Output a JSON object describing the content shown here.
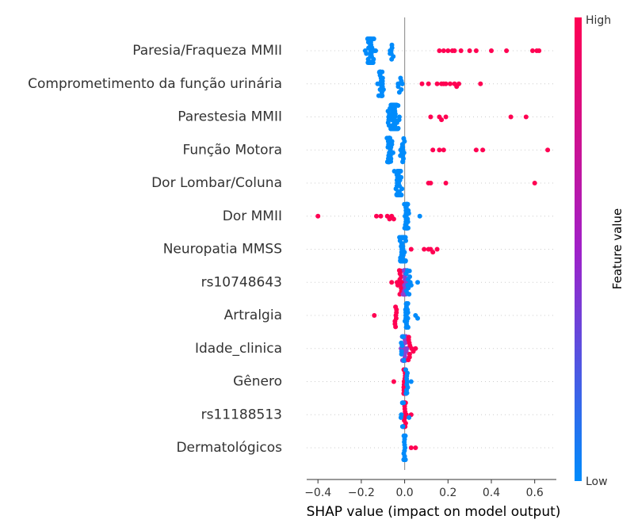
{
  "chart_data": {
    "type": "scatter",
    "subtype": "shap-beeswarm-summary",
    "title": "",
    "xlabel": "SHAP value (impact on model output)",
    "xlim": [
      -0.45,
      0.72
    ],
    "xticks": [
      -0.4,
      -0.2,
      0.0,
      0.2,
      0.4,
      0.6
    ],
    "xtick_labels": [
      "−0.4",
      "−0.2",
      "0.0",
      "0.2",
      "0.4",
      "0.6"
    ],
    "colorbar": {
      "label": "Feature value",
      "high_label": "High",
      "low_label": "Low",
      "low_color": "#008bfb",
      "mid_color": "#a020c8",
      "high_color": "#ff0052"
    },
    "colors": {
      "low": "#008bfb",
      "mid": "#8e3fd0",
      "high": "#ff0052",
      "axis": "#333333",
      "zero_line": "#999999",
      "row_grid": "#cccccc"
    },
    "features": [
      {
        "name": "Paresia/Fraqueza MMII",
        "clusters": [
          {
            "center": -0.16,
            "spread": 0.035,
            "n": 45,
            "level": "low"
          },
          {
            "center": -0.06,
            "spread": 0.02,
            "n": 8,
            "level": "low"
          }
        ],
        "points": [
          {
            "x": 0.16,
            "level": "high"
          },
          {
            "x": 0.18,
            "level": "high"
          },
          {
            "x": 0.2,
            "level": "high"
          },
          {
            "x": 0.22,
            "level": "high"
          },
          {
            "x": 0.23,
            "level": "high"
          },
          {
            "x": 0.26,
            "level": "high"
          },
          {
            "x": 0.3,
            "level": "high"
          },
          {
            "x": 0.33,
            "level": "high"
          },
          {
            "x": 0.4,
            "level": "high"
          },
          {
            "x": 0.47,
            "level": "high"
          },
          {
            "x": 0.59,
            "level": "high"
          },
          {
            "x": 0.61,
            "level": "high"
          },
          {
            "x": 0.62,
            "level": "high"
          }
        ]
      },
      {
        "name": "Comprometimento da função urinária",
        "clusters": [
          {
            "center": -0.11,
            "spread": 0.025,
            "n": 28,
            "level": "low"
          },
          {
            "center": -0.02,
            "spread": 0.015,
            "n": 8,
            "level": "low"
          }
        ],
        "points": [
          {
            "x": 0.08,
            "level": "high"
          },
          {
            "x": 0.11,
            "level": "high"
          },
          {
            "x": 0.15,
            "level": "high"
          },
          {
            "x": 0.17,
            "level": "high"
          },
          {
            "x": 0.18,
            "level": "high"
          },
          {
            "x": 0.19,
            "level": "high"
          },
          {
            "x": 0.21,
            "level": "high"
          },
          {
            "x": 0.23,
            "level": "high"
          },
          {
            "x": 0.24,
            "level": "high"
          },
          {
            "x": 0.25,
            "level": "high"
          },
          {
            "x": 0.35,
            "level": "high"
          }
        ]
      },
      {
        "name": "Parestesia MMII",
        "clusters": [
          {
            "center": -0.05,
            "spread": 0.035,
            "n": 55,
            "level": "low"
          }
        ],
        "points": [
          {
            "x": 0.12,
            "level": "high"
          },
          {
            "x": 0.16,
            "level": "high"
          },
          {
            "x": 0.17,
            "level": "high"
          },
          {
            "x": 0.19,
            "level": "high"
          },
          {
            "x": 0.49,
            "level": "high"
          },
          {
            "x": 0.56,
            "level": "high"
          }
        ]
      },
      {
        "name": "Função Motora",
        "clusters": [
          {
            "center": -0.07,
            "spread": 0.018,
            "n": 30,
            "level": "low"
          },
          {
            "center": -0.01,
            "spread": 0.015,
            "n": 14,
            "level": "low"
          }
        ],
        "points": [
          {
            "x": 0.13,
            "level": "high"
          },
          {
            "x": 0.16,
            "level": "high"
          },
          {
            "x": 0.18,
            "level": "high"
          },
          {
            "x": 0.33,
            "level": "high"
          },
          {
            "x": 0.36,
            "level": "high"
          },
          {
            "x": 0.66,
            "level": "high"
          }
        ]
      },
      {
        "name": "Dor Lombar/Coluna",
        "clusters": [
          {
            "center": -0.03,
            "spread": 0.022,
            "n": 40,
            "level": "low"
          }
        ],
        "points": [
          {
            "x": 0.11,
            "level": "high"
          },
          {
            "x": 0.12,
            "level": "high"
          },
          {
            "x": 0.19,
            "level": "high"
          },
          {
            "x": 0.6,
            "level": "high"
          }
        ]
      },
      {
        "name": "Dor MMII",
        "clusters": [
          {
            "center": 0.01,
            "spread": 0.012,
            "n": 40,
            "level": "low"
          }
        ],
        "points": [
          {
            "x": 0.07,
            "level": "low"
          },
          {
            "x": -0.4,
            "level": "high"
          },
          {
            "x": -0.13,
            "level": "high"
          },
          {
            "x": -0.11,
            "level": "high"
          },
          {
            "x": -0.08,
            "level": "high"
          },
          {
            "x": -0.07,
            "level": "high"
          },
          {
            "x": -0.06,
            "level": "high"
          },
          {
            "x": -0.05,
            "level": "high"
          }
        ]
      },
      {
        "name": "Neuropatia MMSS",
        "clusters": [
          {
            "center": -0.01,
            "spread": 0.02,
            "n": 45,
            "level": "low"
          }
        ],
        "points": [
          {
            "x": 0.03,
            "level": "high"
          },
          {
            "x": 0.09,
            "level": "high"
          },
          {
            "x": 0.11,
            "level": "high"
          },
          {
            "x": 0.12,
            "level": "high"
          },
          {
            "x": 0.13,
            "level": "high"
          },
          {
            "x": 0.15,
            "level": "high"
          }
        ]
      },
      {
        "name": "rs10748643",
        "clusters": [
          {
            "center": -0.02,
            "spread": 0.02,
            "n": 14,
            "level": "high"
          },
          {
            "center": 0.0,
            "spread": 0.015,
            "n": 18,
            "level": "mid"
          },
          {
            "center": 0.02,
            "spread": 0.02,
            "n": 12,
            "level": "low"
          }
        ],
        "points": [
          {
            "x": -0.06,
            "level": "high"
          },
          {
            "x": 0.06,
            "level": "low"
          }
        ]
      },
      {
        "name": "Artralgia",
        "clusters": [
          {
            "center": 0.01,
            "spread": 0.01,
            "n": 30,
            "level": "low"
          },
          {
            "center": -0.04,
            "spread": 0.012,
            "n": 8,
            "level": "high"
          }
        ],
        "points": [
          {
            "x": -0.14,
            "level": "high"
          },
          {
            "x": 0.05,
            "level": "low"
          },
          {
            "x": 0.06,
            "level": "low"
          }
        ]
      },
      {
        "name": "Idade_clinica",
        "clusters": [
          {
            "center": 0.0,
            "spread": 0.02,
            "n": 30,
            "level": "mid"
          },
          {
            "center": -0.01,
            "spread": 0.015,
            "n": 8,
            "level": "low"
          },
          {
            "center": 0.02,
            "spread": 0.015,
            "n": 8,
            "level": "high"
          }
        ],
        "points": [
          {
            "x": 0.05,
            "level": "high"
          },
          {
            "x": 0.04,
            "level": "high"
          }
        ]
      },
      {
        "name": "Gênero",
        "clusters": [
          {
            "center": 0.0,
            "spread": 0.01,
            "n": 26,
            "level": "high"
          },
          {
            "center": 0.01,
            "spread": 0.008,
            "n": 10,
            "level": "low"
          }
        ],
        "points": [
          {
            "x": -0.05,
            "level": "high"
          },
          {
            "x": 0.03,
            "level": "low"
          }
        ]
      },
      {
        "name": "rs11188513",
        "clusters": [
          {
            "center": 0.0,
            "spread": 0.01,
            "n": 24,
            "level": "high"
          },
          {
            "center": -0.01,
            "spread": 0.01,
            "n": 8,
            "level": "low"
          }
        ],
        "points": [
          {
            "x": 0.03,
            "level": "high"
          },
          {
            "x": 0.02,
            "level": "low"
          }
        ]
      },
      {
        "name": "Dermatológicos",
        "clusters": [
          {
            "center": 0.0,
            "spread": 0.006,
            "n": 40,
            "level": "low"
          }
        ],
        "points": [
          {
            "x": 0.03,
            "level": "high"
          },
          {
            "x": 0.05,
            "level": "high"
          }
        ]
      }
    ]
  }
}
